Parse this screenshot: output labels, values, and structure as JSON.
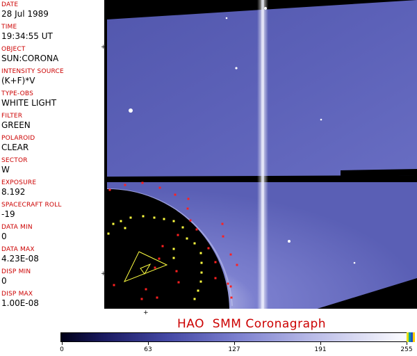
{
  "header_fields": [
    {
      "label": "DATE",
      "value": "28 Jul 1989"
    },
    {
      "label": "TIME",
      "value": "19:34:55 UT"
    },
    {
      "label": "OBJECT",
      "value": "SUN:CORONA"
    },
    {
      "label": "INTENSITY SOURCE",
      "value": "(K+F)*V"
    },
    {
      "label": "TYPE-OBS",
      "value": "WHITE LIGHT"
    },
    {
      "label": "FILTER",
      "value": "GREEN"
    },
    {
      "label": "POLAROID",
      "value": "CLEAR"
    },
    {
      "label": "SECTOR",
      "value": "W"
    },
    {
      "label": "EXPOSURE",
      "value": "8.192"
    },
    {
      "label": "SPACECRAFT ROLL",
      "value": "-19"
    },
    {
      "label": "DATA MIN",
      "value": "0"
    },
    {
      "label": "DATA MAX",
      "value": "4.23E-08"
    },
    {
      "label": "DISP MIN",
      "value": "0"
    },
    {
      "label": "DISP MAX",
      "value": "1.00E-08"
    }
  ],
  "caption": "HAO  SMM Coronagraph",
  "colorbar": {
    "ticks": [
      "0",
      "63",
      "127",
      "191",
      "255"
    ],
    "min": 0,
    "max": 255
  },
  "colors": {
    "label_red": "#cc0000",
    "corona_blue": "#5a5fb8",
    "marker_red": "#ff2020",
    "marker_yellow": "#ffff40"
  }
}
